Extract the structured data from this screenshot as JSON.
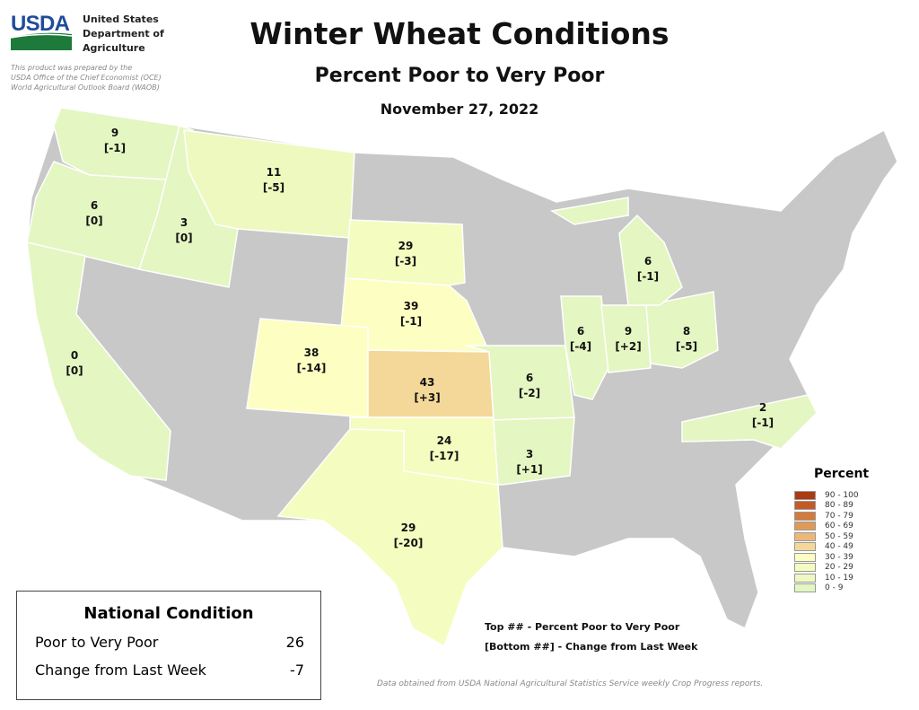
{
  "header": {
    "agency": [
      "United States",
      "Department of",
      "Agriculture"
    ],
    "logo_text": "USDA",
    "prepared": [
      "This product was prepared by the",
      "USDA Office of the Chief Economist (OCE)",
      "World Agricultural Outlook Board (WAOB)"
    ],
    "title": "Winter Wheat Conditions",
    "subtitle": "Percent Poor to Very Poor",
    "date": "November 27, 2022"
  },
  "colors": {
    "no_data": "#c8c8c8",
    "0-9": "#e4f6c2",
    "10-19": "#eef9c0",
    "20-29": "#f4fcc0",
    "30-39": "#fdfec2",
    "40-49": "#f4d899",
    "50-59": "#ecb878",
    "60-69": "#e09a58",
    "70-79": "#d47a3c",
    "80-89": "#c45a26",
    "90-100": "#ac3a12"
  },
  "states": [
    {
      "state": "WA",
      "value": "9",
      "change": "[-1]",
      "bin": "0-9"
    },
    {
      "state": "OR",
      "value": "6",
      "change": "[0]",
      "bin": "0-9"
    },
    {
      "state": "ID",
      "value": "3",
      "change": "[0]",
      "bin": "0-9"
    },
    {
      "state": "MT",
      "value": "11",
      "change": "[-5]",
      "bin": "10-19"
    },
    {
      "state": "CA",
      "value": "0",
      "change": "[0]",
      "bin": "0-9"
    },
    {
      "state": "SD",
      "value": "29",
      "change": "[-3]",
      "bin": "20-29"
    },
    {
      "state": "NE",
      "value": "39",
      "change": "[-1]",
      "bin": "30-39"
    },
    {
      "state": "CO",
      "value": "38",
      "change": "[-14]",
      "bin": "30-39"
    },
    {
      "state": "KS",
      "value": "43",
      "change": "[+3]",
      "bin": "40-49"
    },
    {
      "state": "OK",
      "value": "24",
      "change": "[-17]",
      "bin": "20-29"
    },
    {
      "state": "TX",
      "value": "29",
      "change": "[-20]",
      "bin": "20-29"
    },
    {
      "state": "MO",
      "value": "6",
      "change": "[-2]",
      "bin": "0-9"
    },
    {
      "state": "AR",
      "value": "3",
      "change": "[+1]",
      "bin": "0-9"
    },
    {
      "state": "IL",
      "value": "6",
      "change": "[-4]",
      "bin": "0-9"
    },
    {
      "state": "IN",
      "value": "9",
      "change": "[+2]",
      "bin": "0-9"
    },
    {
      "state": "OH",
      "value": "8",
      "change": "[-5]",
      "bin": "0-9"
    },
    {
      "state": "MI",
      "value": "6",
      "change": "[-1]",
      "bin": "0-9"
    },
    {
      "state": "NC",
      "value": "2",
      "change": "[-1]",
      "bin": "0-9"
    }
  ],
  "legend": {
    "title": "Percent",
    "bins": [
      "90 - 100",
      "80 - 89",
      "70 - 79",
      "60 - 69",
      "50 - 59",
      "40 - 49",
      "30 - 39",
      "20 - 29",
      "10 - 19",
      "0 - 9"
    ]
  },
  "national": {
    "title": "National Condition",
    "rows": [
      {
        "label": "Poor to Very Poor",
        "value": "26"
      },
      {
        "label": "Change from Last Week",
        "value": "-7"
      }
    ]
  },
  "notes": [
    "Top ## - Percent Poor to Very Poor",
    "[Bottom ##] - Change from Last Week"
  ],
  "source": "Data obtained from USDA National Agricultural Statistics Service weekly Crop Progress reports."
}
